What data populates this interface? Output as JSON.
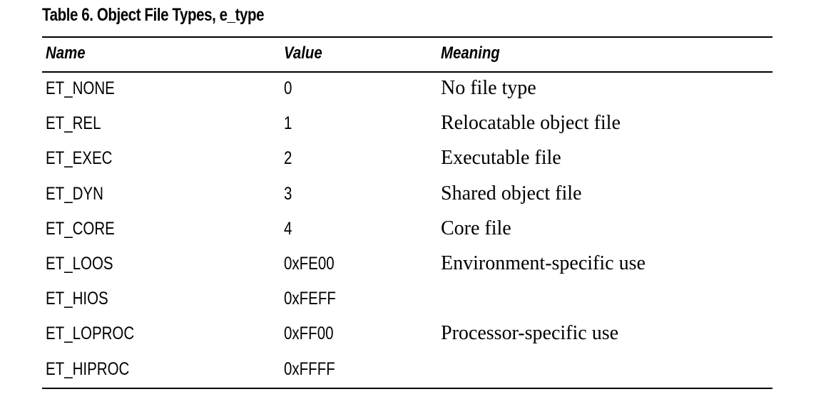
{
  "caption": "Table 6.  Object File Types, e_type",
  "table": {
    "headers": {
      "name": "Name",
      "value": "Value",
      "meaning": "Meaning"
    },
    "rows": [
      {
        "name": "ET_NONE",
        "value": "0",
        "meaning": "No file type"
      },
      {
        "name": "ET_REL",
        "value": "1",
        "meaning": "Relocatable object file"
      },
      {
        "name": "ET_EXEC",
        "value": "2",
        "meaning": "Executable file"
      },
      {
        "name": "ET_DYN",
        "value": "3",
        "meaning": "Shared object file"
      },
      {
        "name": "ET_CORE",
        "value": "4",
        "meaning": "Core file"
      },
      {
        "name": "ET_LOOS",
        "value": "0xFE00",
        "meaning": "Environment-specific use"
      },
      {
        "name": "ET_HIOS",
        "value": "0xFEFF",
        "meaning": ""
      },
      {
        "name": "ET_LOPROC",
        "value": "0xFF00",
        "meaning": "Processor-specific use"
      },
      {
        "name": "ET_HIPROC",
        "value": "0xFFFF",
        "meaning": ""
      }
    ]
  }
}
